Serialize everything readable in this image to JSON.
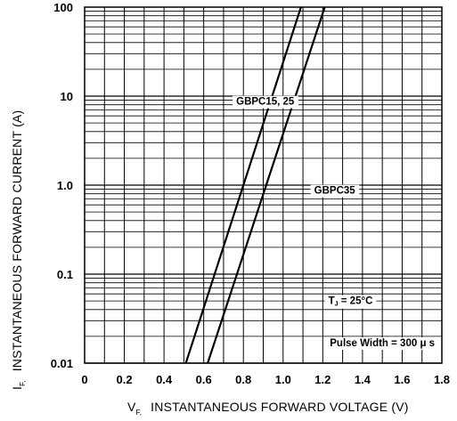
{
  "chart_data": {
    "type": "line",
    "title": "",
    "xlabel": {
      "main": "V",
      "sub": "F,",
      "text": "INSTANTANEOUS FORWARD VOLTAGE  (V)"
    },
    "ylabel": {
      "main": "I",
      "sub": "F,",
      "text": "INSTANTANEOUS FORWARD CURRENT  (A)"
    },
    "xlim": [
      0,
      1.8
    ],
    "ylim": [
      0.01,
      100
    ],
    "yscale": "log",
    "grid": true,
    "x_ticks": [
      0,
      0.2,
      0.4,
      0.6,
      0.8,
      1.0,
      1.2,
      1.4,
      1.6,
      1.8
    ],
    "x_tick_labels": [
      "0",
      "0.2",
      "0.4",
      "0.6",
      "0.8",
      "1.0",
      "1.2",
      "1.4",
      "1.6",
      "1.8"
    ],
    "y_ticks": [
      0.01,
      0.1,
      1,
      10,
      100
    ],
    "y_tick_labels": [
      "0.01",
      "0.1",
      "1.0",
      "10",
      "100"
    ],
    "series": [
      {
        "name": "GBPC15, 25",
        "points": [
          [
            0.51,
            0.01
          ],
          [
            1.09,
            100
          ]
        ]
      },
      {
        "name": "GBPC35",
        "points": [
          [
            0.62,
            0.01
          ],
          [
            1.21,
            100
          ]
        ]
      }
    ],
    "annotations": [
      {
        "text": "GBPC15, 25",
        "at": [
          0.91,
          8.0
        ]
      },
      {
        "text": "GBPC35",
        "at": [
          1.26,
          0.8
        ]
      },
      {
        "text_main": "T",
        "text_sub": "J",
        "text_rest": " = 25°C",
        "at": [
          1.34,
          0.046
        ]
      },
      {
        "text": "Pulse Width = 300 μ s",
        "at": [
          1.5,
          0.0155
        ]
      }
    ]
  }
}
